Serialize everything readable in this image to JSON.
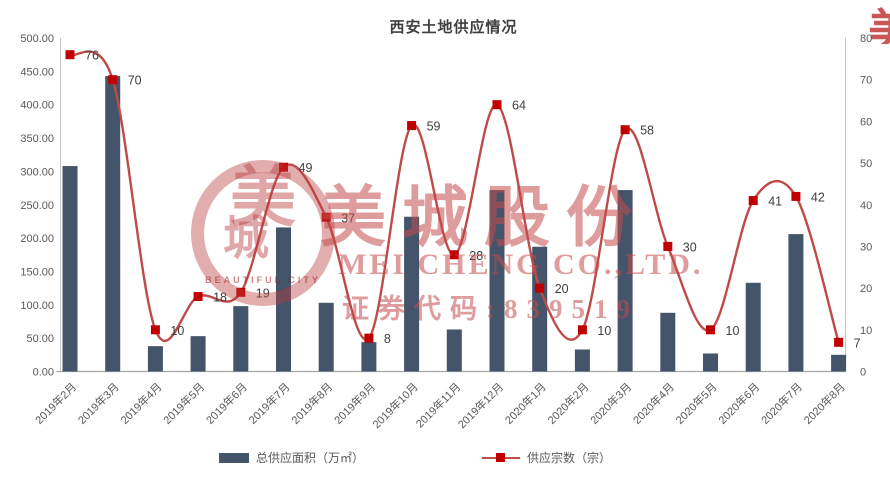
{
  "title": "西安土地供应情况",
  "colors": {
    "bar": "#44546A",
    "line": "#BE4B48",
    "marker": "#C00000",
    "axis_text": "#595959",
    "data_label_text": "#404040",
    "axis_line_side": "#C6C6C6",
    "axis_line_bottom": "#A6A6A6",
    "watermark_red": "#C00000",
    "title_text": "#3F3F3F"
  },
  "chart_data": {
    "type": "combo-bar-line",
    "title": "西安土地供应情况",
    "categories": [
      "2019年2月",
      "2019年3月",
      "2019年4月",
      "2019年5月",
      "2019年6月",
      "2019年7月",
      "2019年8月",
      "2019年9月",
      "2019年10月",
      "2019年11月",
      "2019年12月",
      "2020年1月",
      "2020年2月",
      "2020年3月",
      "2020年4月",
      "2020年5月",
      "2020年6月",
      "2020年7月",
      "2020年8月"
    ],
    "series": [
      {
        "name": "总供应面积（万㎡）",
        "type": "bar",
        "axis": "left",
        "values": [
          308,
          443,
          38,
          53,
          98,
          216,
          103,
          44,
          232,
          63,
          272,
          187,
          33,
          272,
          88,
          27,
          133,
          206,
          25
        ]
      },
      {
        "name": "供应宗数（宗）",
        "type": "line",
        "axis": "right",
        "smooth": true,
        "data_labels": true,
        "values": [
          76,
          70,
          10,
          18,
          19,
          49,
          37,
          8,
          59,
          28,
          64,
          20,
          10,
          58,
          30,
          10,
          41,
          42,
          7
        ]
      }
    ],
    "left_axis": {
      "min": 0,
      "max": 500,
      "step": 50,
      "ticks": [
        "0.00",
        "50.00",
        "100.00",
        "150.00",
        "200.00",
        "250.00",
        "300.00",
        "350.00",
        "400.00",
        "450.00",
        "500.00"
      ]
    },
    "right_axis": {
      "min": 0,
      "max": 80,
      "step": 10,
      "ticks": [
        "0",
        "10",
        "20",
        "30",
        "40",
        "50",
        "60",
        "70",
        "80"
      ]
    },
    "grid": false,
    "legend_position": "bottom",
    "x_label_rotation": -45
  },
  "legend": {
    "bar_label": "总供应面积（万㎡）",
    "line_label": "供应宗数（宗）"
  },
  "watermark": {
    "logo_char_top": "美",
    "logo_char_bottom": "城",
    "logo_caption": "BEAUTIFUL CITY",
    "line1": "美城股份",
    "line2": "MEI CHENG CO.,LTD.",
    "line3": "证券代码:839519",
    "corner_char": "美"
  }
}
